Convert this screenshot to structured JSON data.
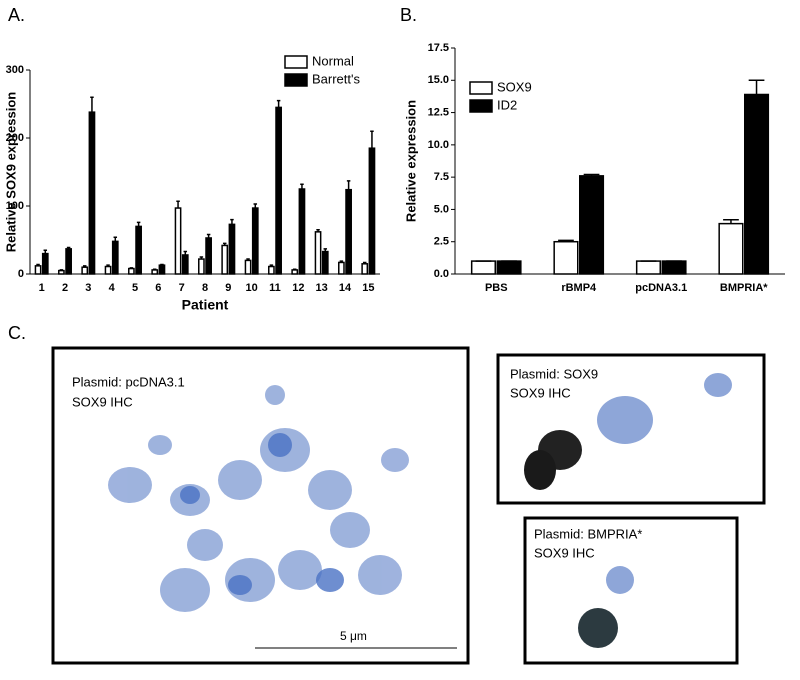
{
  "panels": [
    "A.",
    "B.",
    "C."
  ],
  "chart_data": [
    {
      "type": "bar",
      "x_label": "Patient",
      "y_label": "Relative SOX9 expression",
      "categories": [
        "1",
        "2",
        "3",
        "4",
        "5",
        "6",
        "7",
        "8",
        "9",
        "10",
        "11",
        "12",
        "13",
        "14",
        "15"
      ],
      "series": [
        {
          "name": "Normal",
          "color": "#ffffff",
          "values": [
            12,
            5,
            10,
            11,
            8,
            6,
            97,
            22,
            42,
            20,
            11,
            6,
            62,
            17,
            15
          ],
          "errors": [
            2,
            1,
            2,
            2,
            1,
            1,
            10,
            3,
            3,
            2,
            2,
            1,
            3,
            2,
            2
          ]
        },
        {
          "name": "Barrett's",
          "color": "#000000",
          "values": [
            30,
            37,
            238,
            48,
            70,
            13,
            28,
            53,
            73,
            97,
            245,
            125,
            33,
            124,
            185
          ],
          "errors": [
            5,
            2,
            22,
            6,
            6,
            1,
            5,
            5,
            7,
            6,
            10,
            7,
            4,
            13,
            25
          ]
        }
      ],
      "ylim": [
        0,
        300
      ],
      "yticks": [
        0,
        100,
        200,
        300
      ],
      "grid": false,
      "legend": "upper-right"
    },
    {
      "type": "bar",
      "y_label": "Relative expression",
      "categories": [
        "PBS",
        "rBMP4",
        "pcDNA3.1",
        "BMPRIA*"
      ],
      "series": [
        {
          "name": "SOX9",
          "color": "#ffffff",
          "values": [
            1,
            2.5,
            1,
            3.9
          ],
          "errors": [
            0,
            0.1,
            0,
            0.3
          ]
        },
        {
          "name": "ID2",
          "color": "#000000",
          "values": [
            1,
            7.6,
            1,
            13.9
          ],
          "errors": [
            0,
            0.1,
            0,
            1.1
          ]
        }
      ],
      "ylim": [
        0,
        17.5
      ],
      "yticks": [
        {
          "value": 0,
          "label": "0.0"
        },
        2.5,
        {
          "value": 5,
          "label": "5.0"
        },
        7.5,
        {
          "value": 10,
          "label": "10.0"
        },
        12.5,
        {
          "value": 15,
          "label": "15.0"
        },
        17.5
      ],
      "grid": false,
      "legend": "upper-left"
    }
  ],
  "micrographs": [
    {
      "plasmid": "Plasmid: pcDNA3.1",
      "stain": "SOX9 IHC",
      "scale_bar": "5 μm"
    },
    {
      "plasmid": "Plasmid: SOX9",
      "stain": "SOX9 IHC"
    },
    {
      "plasmid": "Plasmid: BMPRIA*",
      "stain": "SOX9 IHC"
    }
  ]
}
